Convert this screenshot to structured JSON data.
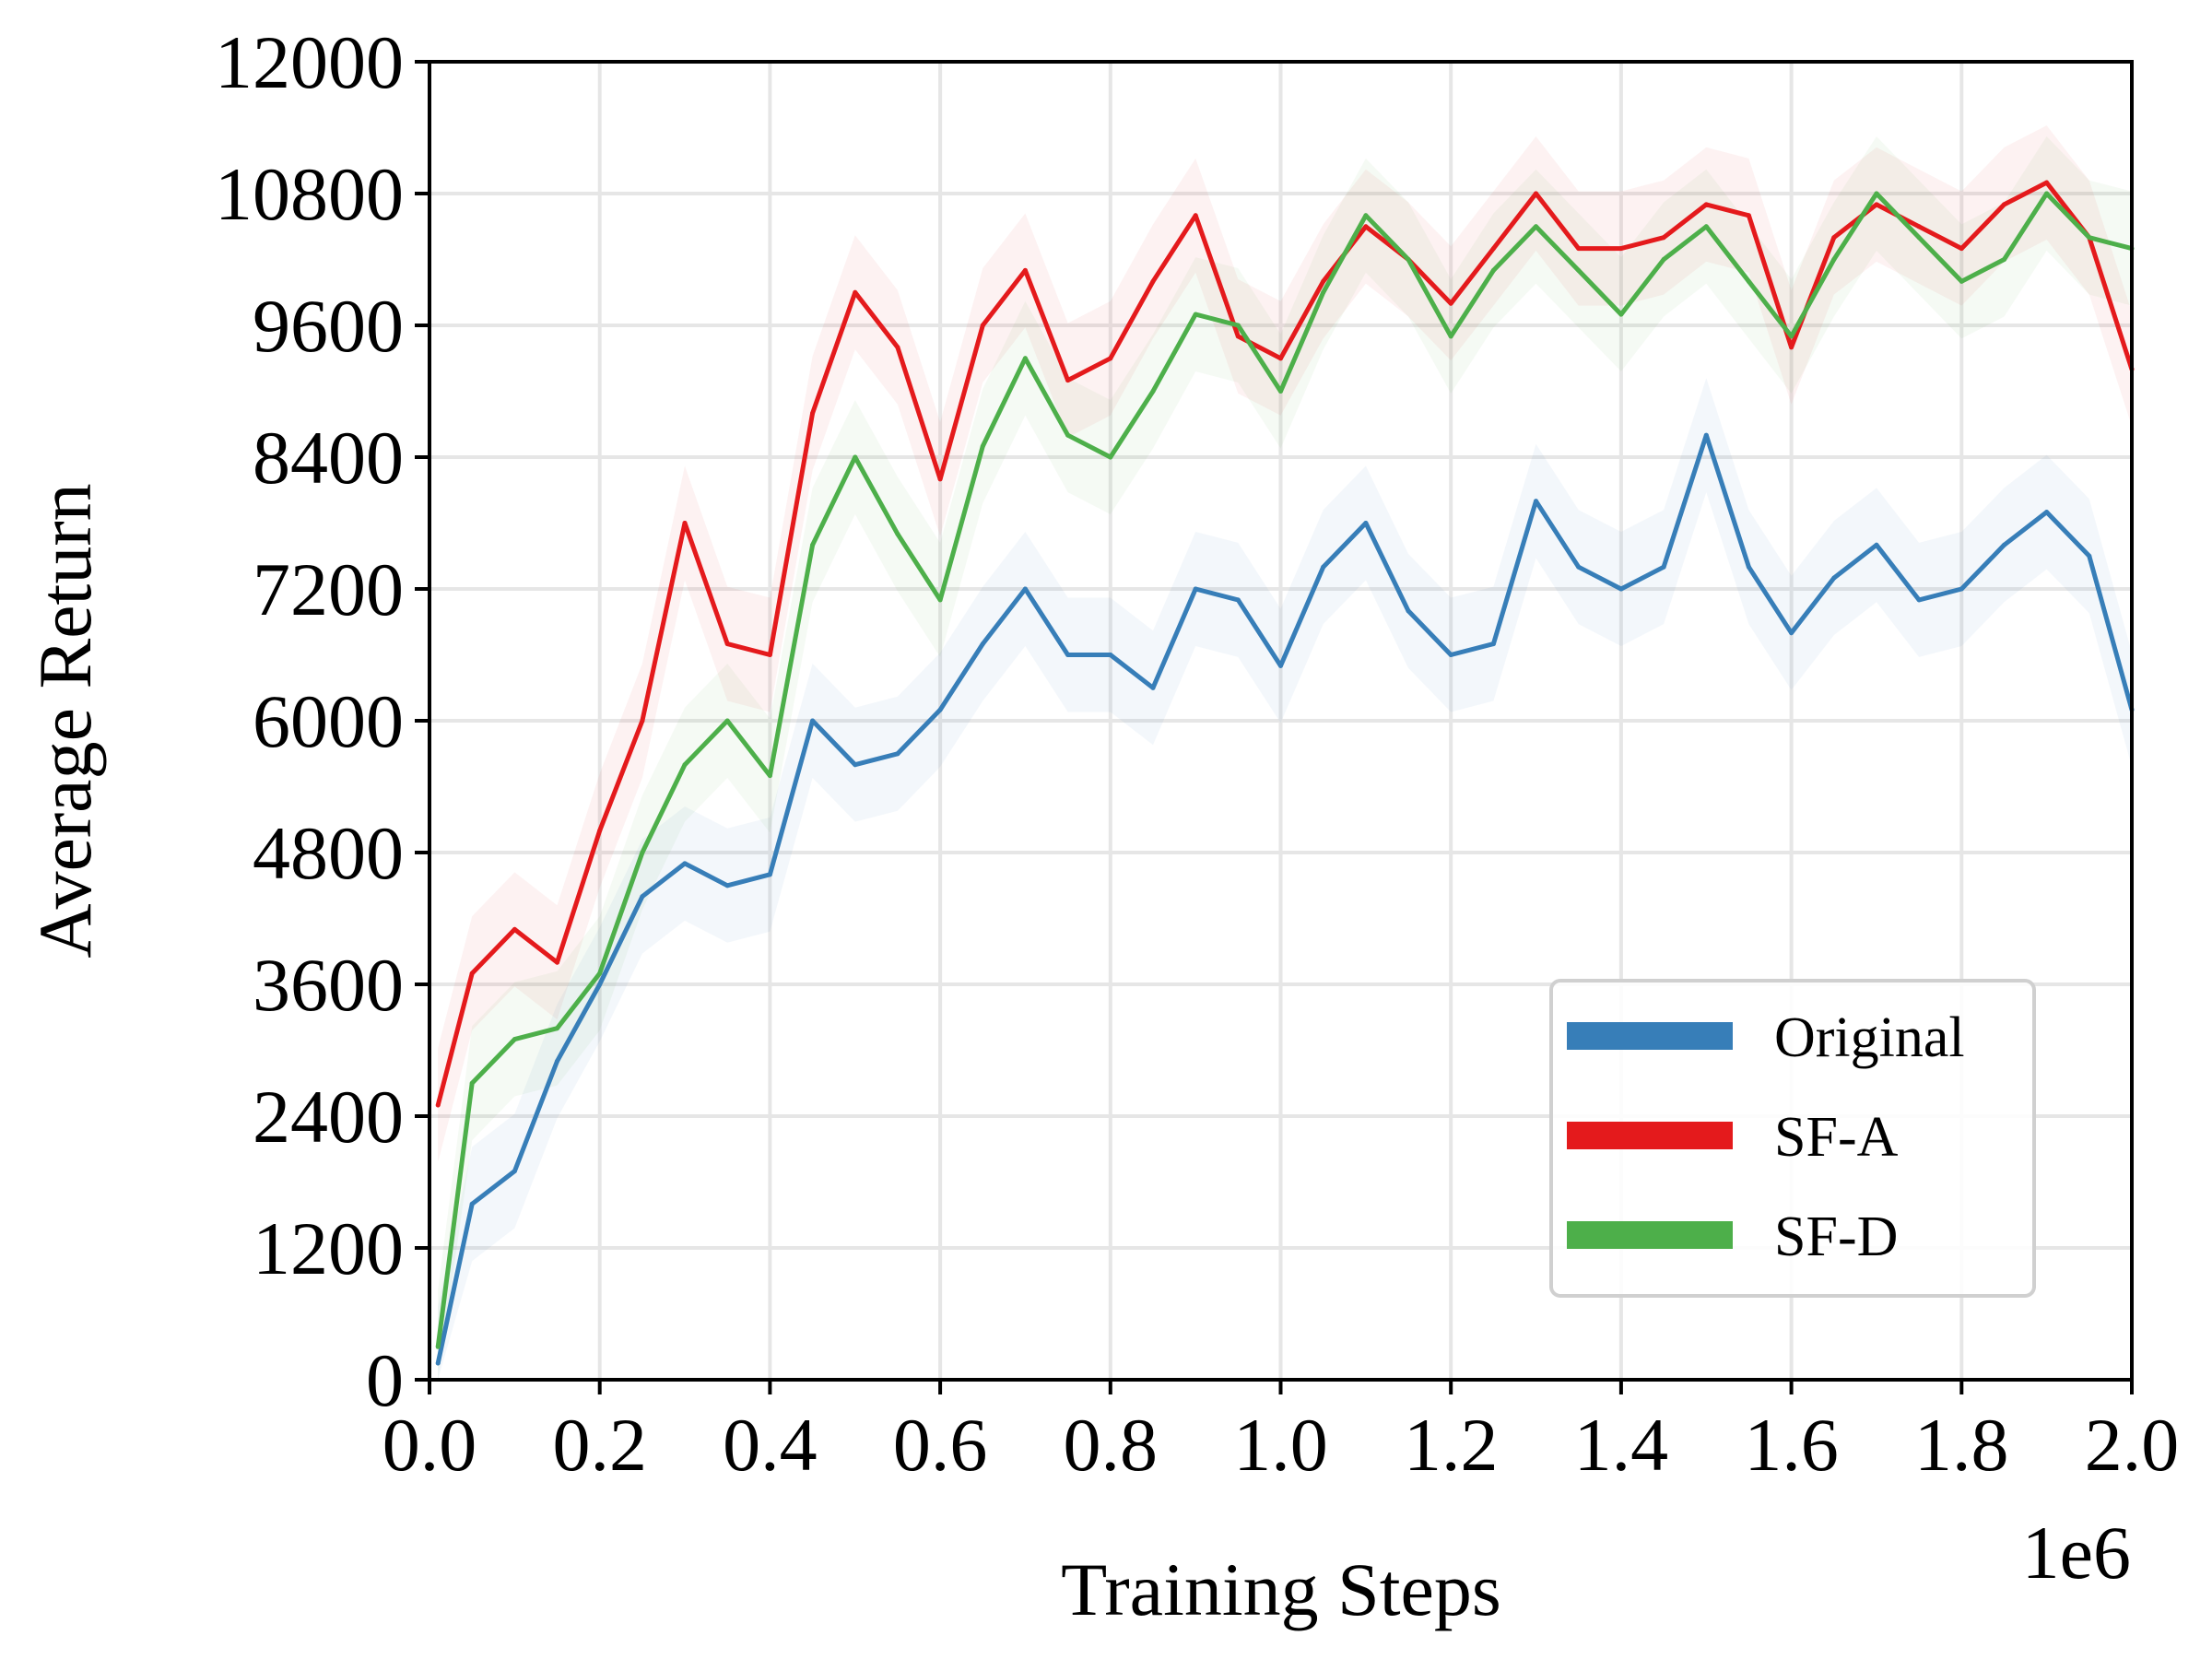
{
  "chart_data": {
    "type": "line",
    "title": "",
    "xlabel": "Training Steps",
    "ylabel": "Average Return",
    "x_offset_label": "1e6",
    "xlim": [
      0.0,
      2.0
    ],
    "ylim": [
      0,
      12000
    ],
    "grid": true,
    "legend_position": "lower-right",
    "x_ticks": [
      0.0,
      0.2,
      0.4,
      0.6,
      0.8,
      1.0,
      1.2,
      1.4,
      1.6,
      1.8,
      2.0
    ],
    "x_tick_labels": [
      "0.0",
      "0.2",
      "0.4",
      "0.6",
      "0.8",
      "1.0",
      "1.2",
      "1.4",
      "1.6",
      "1.8",
      "2.0"
    ],
    "y_ticks": [
      0,
      1200,
      2400,
      3600,
      4800,
      6000,
      7200,
      8400,
      9600,
      10800,
      12000
    ],
    "y_tick_labels": [
      "0",
      "1200",
      "2400",
      "3600",
      "4800",
      "6000",
      "7200",
      "8400",
      "9600",
      "10800",
      "12000"
    ],
    "x": [
      0.01,
      0.05,
      0.1,
      0.15,
      0.2,
      0.25,
      0.3,
      0.35,
      0.4,
      0.45,
      0.5,
      0.55,
      0.6,
      0.65,
      0.7,
      0.75,
      0.8,
      0.85,
      0.9,
      0.95,
      1.0,
      1.05,
      1.1,
      1.15,
      1.2,
      1.25,
      1.3,
      1.35,
      1.4,
      1.45,
      1.5,
      1.55,
      1.6,
      1.65,
      1.7,
      1.75,
      1.8,
      1.85,
      1.9,
      1.95,
      2.0
    ],
    "series": [
      {
        "name": "Original",
        "color": "#377eb8",
        "values": [
          150,
          1600,
          1900,
          2900,
          3600,
          4400,
          4700,
          4500,
          4600,
          6000,
          5600,
          5700,
          6100,
          6700,
          7200,
          6600,
          6600,
          6300,
          7200,
          7100,
          6500,
          7400,
          7800,
          7000,
          6600,
          6700,
          8000,
          7400,
          7200,
          7400,
          8600,
          7400,
          6800,
          7300,
          7600,
          7100,
          7200,
          7600,
          7900,
          7500,
          6100
        ]
      },
      {
        "name": "SF-A",
        "color": "#e41a1c",
        "values": [
          2500,
          3700,
          4100,
          3800,
          5000,
          6000,
          7800,
          6700,
          6600,
          8800,
          9900,
          9400,
          8200,
          9600,
          10100,
          9100,
          9300,
          10000,
          10600,
          9500,
          9300,
          10000,
          10500,
          10200,
          9800,
          10300,
          10800,
          10300,
          10300,
          10400,
          10700,
          10600,
          9400,
          10400,
          10700,
          10500,
          10300,
          10700,
          10900,
          10400,
          9200
        ]
      },
      {
        "name": "SF-D",
        "color": "#4daf4a",
        "values": [
          300,
          2700,
          3100,
          3200,
          3700,
          4800,
          5600,
          6000,
          5500,
          7600,
          8400,
          7700,
          7100,
          8500,
          9300,
          8600,
          8400,
          9000,
          9700,
          9600,
          9000,
          9900,
          10600,
          10200,
          9500,
          10100,
          10500,
          10100,
          9700,
          10200,
          10500,
          10000,
          9500,
          10200,
          10800,
          10400,
          10000,
          10200,
          10800,
          10400,
          10300
        ]
      }
    ]
  }
}
